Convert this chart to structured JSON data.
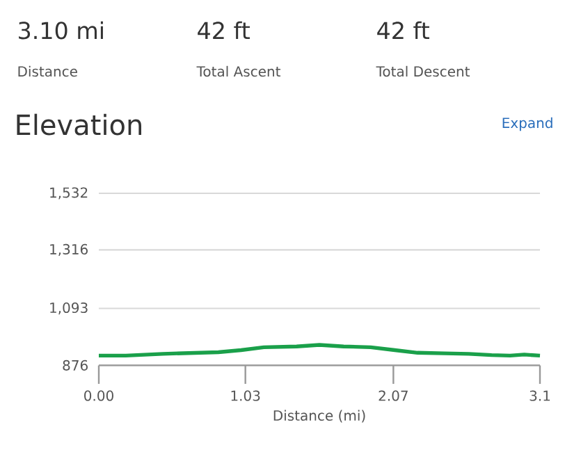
{
  "chart_data": {
    "type": "line",
    "title": "Elevation",
    "xlabel": "Distance (mi)",
    "annotations": [
      "3.10 mi",
      "Distance",
      "42 ft",
      "Total Ascent",
      "42 ft",
      "Total Descent",
      "Expand"
    ],
    "x": [
      0,
      0.19,
      0.45,
      0.84,
      1.0,
      1.16,
      1.39,
      1.55,
      1.72,
      1.91,
      2.08,
      2.24,
      2.43,
      2.6,
      2.76,
      2.89,
      2.99,
      3.1
    ],
    "series": [
      {
        "color": "#1aa04a",
        "values": [
          913,
          913,
          920,
          926,
          934,
          945,
          948,
          954,
          948,
          945,
          934,
          924,
          922,
          920,
          915,
          913,
          917,
          913
        ]
      }
    ],
    "xlim": [
      0,
      3.1
    ],
    "ylim": [
      876,
      1532
    ],
    "xticks": [
      {
        "value": 0,
        "label": "0.00"
      },
      1.03,
      2.07,
      3.1
    ],
    "yticks": [
      876,
      {
        "value": 1093,
        "label": "1,093"
      },
      {
        "value": 1316,
        "label": "1,316"
      },
      {
        "value": 1532,
        "label": "1,532"
      }
    ],
    "grid": "y"
  }
}
